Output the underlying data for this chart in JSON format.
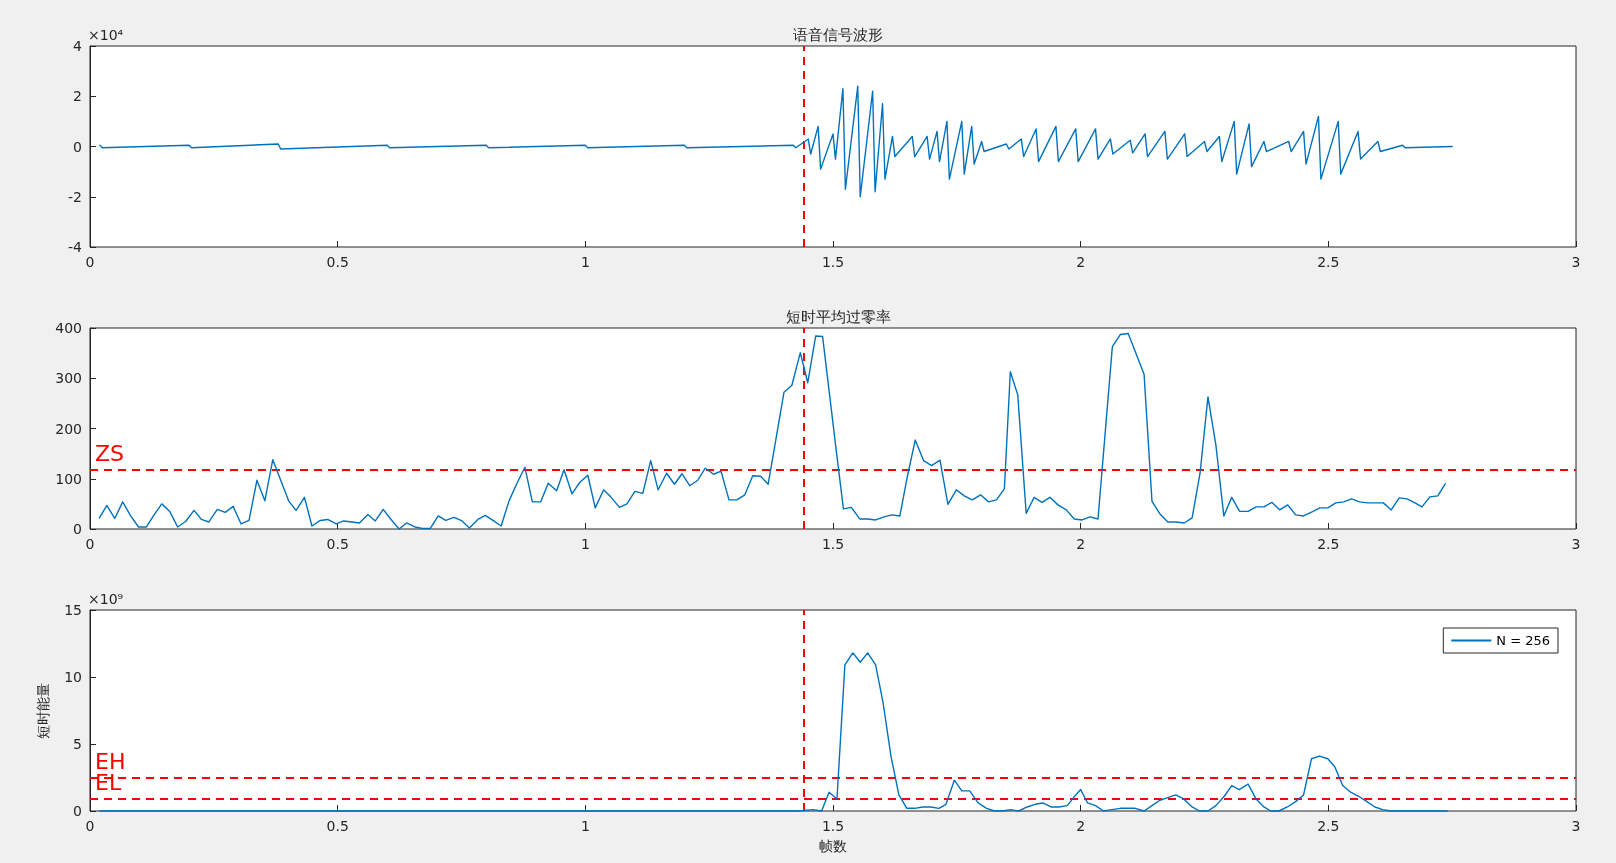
{
  "chart_data": [
    {
      "type": "line",
      "title": "语音信号波形",
      "annotations": [
        "×10⁴"
      ],
      "marker": "none",
      "grid": false,
      "xlim": [
        0,
        3
      ],
      "xticks": [
        0,
        0.5,
        1,
        1.5,
        2,
        2.5,
        3
      ],
      "ylim": [
        -4,
        4
      ],
      "yticks": [
        -4,
        -2,
        0,
        2,
        4
      ],
      "series": [
        {
          "color": "#0072bd",
          "x": [
            0.02,
            0.025,
            0.2,
            0.205,
            0.38,
            0.385,
            0.6,
            0.605,
            0.8,
            0.805,
            1.0,
            1.005,
            1.2,
            1.205,
            1.42,
            1.425,
            1.45,
            1.455,
            1.47,
            1.475,
            1.5,
            1.505,
            1.52,
            1.525,
            1.55,
            1.555,
            1.58,
            1.585,
            1.6,
            1.605,
            1.62,
            1.625,
            1.66,
            1.665,
            1.69,
            1.695,
            1.71,
            1.715,
            1.73,
            1.735,
            1.76,
            1.765,
            1.78,
            1.785,
            1.8,
            1.805,
            1.85,
            1.855,
            1.88,
            1.885,
            1.91,
            1.915,
            1.95,
            1.955,
            1.99,
            1.995,
            2.03,
            2.035,
            2.06,
            2.065,
            2.1,
            2.105,
            2.13,
            2.135,
            2.17,
            2.175,
            2.21,
            2.215,
            2.25,
            2.255,
            2.28,
            2.285,
            2.31,
            2.315,
            2.34,
            2.345,
            2.37,
            2.375,
            2.42,
            2.425,
            2.45,
            2.455,
            2.48,
            2.485,
            2.52,
            2.525,
            2.56,
            2.565,
            2.6,
            2.605,
            2.65,
            2.655,
            2.75
          ],
          "values": [
            0.05,
            -0.05,
            0.05,
            -0.05,
            0.1,
            -0.1,
            0.05,
            -0.05,
            0.05,
            -0.05,
            0.05,
            -0.05,
            0.05,
            -0.05,
            0.05,
            -0.05,
            0.3,
            -0.3,
            0.8,
            -0.9,
            0.5,
            -0.5,
            2.3,
            -1.7,
            2.4,
            -2.0,
            2.2,
            -1.8,
            1.7,
            -1.3,
            0.4,
            -0.4,
            0.4,
            -0.4,
            0.4,
            -0.5,
            0.6,
            -0.6,
            1.0,
            -1.3,
            1.0,
            -1.1,
            0.8,
            -0.7,
            0.2,
            -0.2,
            0.1,
            -0.1,
            0.3,
            -0.4,
            0.7,
            -0.6,
            0.8,
            -0.6,
            0.7,
            -0.6,
            0.7,
            -0.5,
            0.3,
            -0.3,
            0.25,
            -0.25,
            0.5,
            -0.4,
            0.6,
            -0.5,
            0.5,
            -0.4,
            0.2,
            -0.2,
            0.4,
            -0.6,
            1.0,
            -1.1,
            0.9,
            -0.8,
            0.2,
            -0.2,
            0.2,
            -0.2,
            0.6,
            -0.7,
            1.2,
            -1.3,
            1.0,
            -1.1,
            0.6,
            -0.5,
            0.2,
            -0.2,
            0.05,
            -0.05,
            0
          ]
        }
      ],
      "ref_lines": [
        {
          "axis": "x",
          "value": 1.435,
          "color": "#ff0000",
          "line_style": "dashed"
        }
      ]
    },
    {
      "type": "line",
      "title": "短时平均过零率",
      "marker": "none",
      "grid": false,
      "xlim": [
        0,
        3
      ],
      "xticks": [
        0,
        0.5,
        1,
        1.5,
        2,
        2.5,
        3
      ],
      "ylim": [
        0,
        400
      ],
      "yticks": [
        0,
        100,
        200,
        300,
        400
      ],
      "series": [
        {
          "color": "#0072bd",
          "x": [
            0.019,
            0.034,
            0.05,
            0.066,
            0.082,
            0.098,
            0.114,
            0.13,
            0.145,
            0.161,
            0.177,
            0.193,
            0.21,
            0.225,
            0.24,
            0.257,
            0.273,
            0.289,
            0.305,
            0.321,
            0.337,
            0.353,
            0.369,
            0.385,
            0.401,
            0.416,
            0.433,
            0.448,
            0.465,
            0.48,
            0.497,
            0.512,
            0.529,
            0.544,
            0.561,
            0.576,
            0.592,
            0.607,
            0.624,
            0.639,
            0.656,
            0.671,
            0.687,
            0.703,
            0.718,
            0.735,
            0.751,
            0.766,
            0.783,
            0.798,
            0.815,
            0.83,
            0.846,
            0.862,
            0.878,
            0.893,
            0.91,
            0.925,
            0.942,
            0.957,
            0.973,
            0.989,
            1.005,
            1.02,
            1.037,
            1.052,
            1.069,
            1.084,
            1.1,
            1.116,
            1.132,
            1.147,
            1.164,
            1.18,
            1.195,
            1.211,
            1.227,
            1.242,
            1.259,
            1.274,
            1.29,
            1.306,
            1.322,
            1.338,
            1.354,
            1.369,
            1.385,
            1.401,
            1.417,
            1.434,
            1.449,
            1.465,
            1.479,
            1.505,
            1.521,
            1.537,
            1.554,
            1.57,
            1.586,
            1.603,
            1.619,
            1.635,
            1.65,
            1.666,
            1.683,
            1.699,
            1.716,
            1.732,
            1.749,
            1.765,
            1.781,
            1.798,
            1.814,
            1.83,
            1.846,
            1.858,
            1.873,
            1.89,
            1.906,
            1.922,
            1.938,
            1.954,
            1.971,
            1.987,
            2.003,
            2.019,
            2.035,
            2.064,
            2.08,
            2.096,
            2.128,
            2.144,
            2.16,
            2.176,
            2.192,
            2.209,
            2.225,
            2.241,
            2.257,
            2.273,
            2.289,
            2.305,
            2.321,
            2.338,
            2.354,
            2.37,
            2.386,
            2.402,
            2.418,
            2.434,
            2.45,
            2.467,
            2.483,
            2.499,
            2.515,
            2.531,
            2.547,
            2.563,
            2.579,
            2.595,
            2.611,
            2.627,
            2.643,
            2.659,
            2.675,
            2.689,
            2.705,
            2.721,
            2.736
          ],
          "values": [
            22,
            47,
            21,
            54,
            26,
            4,
            4,
            29,
            50,
            35,
            4,
            15,
            37,
            19,
            14,
            39,
            33,
            45,
            10,
            17,
            97,
            56,
            138,
            97,
            56,
            37,
            63,
            6,
            17,
            19,
            10,
            16,
            14,
            12,
            29,
            16,
            39,
            20,
            0,
            12,
            4,
            1,
            1,
            26,
            17,
            23,
            16,
            2,
            19,
            27,
            16,
            6,
            56,
            91,
            123,
            54,
            54,
            91,
            76,
            118,
            70,
            93,
            107,
            42,
            78,
            63,
            43,
            50,
            75,
            71,
            136,
            78,
            111,
            89,
            110,
            86,
            97,
            121,
            109,
            115,
            58,
            58,
            68,
            106,
            105,
            89,
            180,
            272,
            286,
            351,
            291,
            384,
            383,
            169,
            40,
            43,
            20,
            20,
            18,
            24,
            28,
            26,
            104,
            177,
            136,
            126,
            137,
            49,
            78,
            66,
            58,
            68,
            54,
            58,
            80,
            313,
            267,
            31,
            63,
            53,
            63,
            48,
            38,
            20,
            18,
            24,
            20,
            363,
            387,
            389,
            308,
            55,
            30,
            14,
            14,
            12,
            22,
            111,
            263,
            167,
            26,
            63,
            35,
            35,
            44,
            44,
            53,
            38,
            48,
            28,
            26,
            34,
            42,
            42,
            52,
            54,
            60,
            54,
            52,
            52,
            52,
            38,
            62,
            60,
            52,
            44,
            64,
            66,
            90
          ]
        }
      ],
      "ref_lines": [
        {
          "axis": "x",
          "value": 1.435,
          "color": "#ff0000",
          "line_style": "dashed"
        },
        {
          "axis": "y",
          "value": 118,
          "label": "ZS",
          "color": "#ff0000",
          "line_style": "dashed"
        }
      ]
    },
    {
      "type": "line",
      "xlabel": "帧数",
      "ylabel": "短时能量",
      "annotations": [
        "×10⁹"
      ],
      "marker": "none",
      "grid": false,
      "legend": "top right",
      "xlim": [
        0,
        3
      ],
      "xticks": [
        0,
        0.5,
        1,
        1.5,
        2,
        2.5,
        3
      ],
      "ylim": [
        0,
        15
      ],
      "yticks": [
        0,
        5,
        10,
        15
      ],
      "series": [
        {
          "name": "N = 256",
          "color": "#0072bd",
          "x": [
            0.02,
            0.5,
            1.0,
            1.43,
            1.46,
            1.477,
            1.492,
            1.508,
            1.524,
            1.54,
            1.555,
            1.57,
            1.586,
            1.601,
            1.617,
            1.633,
            1.649,
            1.665,
            1.681,
            1.698,
            1.714,
            1.728,
            1.745,
            1.76,
            1.776,
            1.793,
            1.81,
            1.826,
            1.842,
            1.858,
            1.875,
            1.892,
            1.908,
            1.924,
            1.94,
            1.956,
            1.973,
            1.99,
            2.0,
            2.014,
            2.03,
            2.046,
            2.063,
            2.08,
            2.096,
            2.11,
            2.128,
            2.144,
            2.16,
            2.176,
            2.192,
            2.208,
            2.225,
            2.24,
            2.257,
            2.273,
            2.29,
            2.305,
            2.32,
            2.338,
            2.354,
            2.37,
            2.384,
            2.4,
            2.417,
            2.434,
            2.45,
            2.466,
            2.482,
            2.499,
            2.513,
            2.529,
            2.545,
            2.561,
            2.578,
            2.594,
            2.61,
            2.626,
            2.74
          ],
          "values": [
            0,
            0,
            0,
            0,
            0.1,
            0,
            1.4,
            0.9,
            10.9,
            11.8,
            11.1,
            11.8,
            10.9,
            8.1,
            4.1,
            1.2,
            0.2,
            0.2,
            0.3,
            0.3,
            0.2,
            0.5,
            2.3,
            1.5,
            1.5,
            0.6,
            0.2,
            0,
            0,
            0.1,
            0,
            0.3,
            0.5,
            0.6,
            0.3,
            0.3,
            0.4,
            1.2,
            1.6,
            0.6,
            0.4,
            0,
            0.1,
            0.2,
            0.2,
            0.2,
            0,
            0.4,
            0.8,
            1.0,
            1.2,
            0.9,
            0.3,
            0,
            0,
            0.4,
            1.1,
            1.9,
            1.6,
            2.0,
            0.9,
            0.3,
            0,
            0,
            0.3,
            0.7,
            1.2,
            3.9,
            4.1,
            3.9,
            3.3,
            1.9,
            1.4,
            1.1,
            0.7,
            0.3,
            0.1,
            0,
            0
          ]
        }
      ],
      "ref_lines": [
        {
          "axis": "x",
          "value": 1.435,
          "color": "#ff0000",
          "line_style": "dashed"
        },
        {
          "axis": "y",
          "value": 2.5,
          "label": "EH",
          "color": "#ff0000",
          "line_style": "dashed"
        },
        {
          "axis": "y",
          "value": 0.9,
          "label": "EL",
          "color": "#ff0000",
          "line_style": "dashed"
        }
      ]
    }
  ]
}
